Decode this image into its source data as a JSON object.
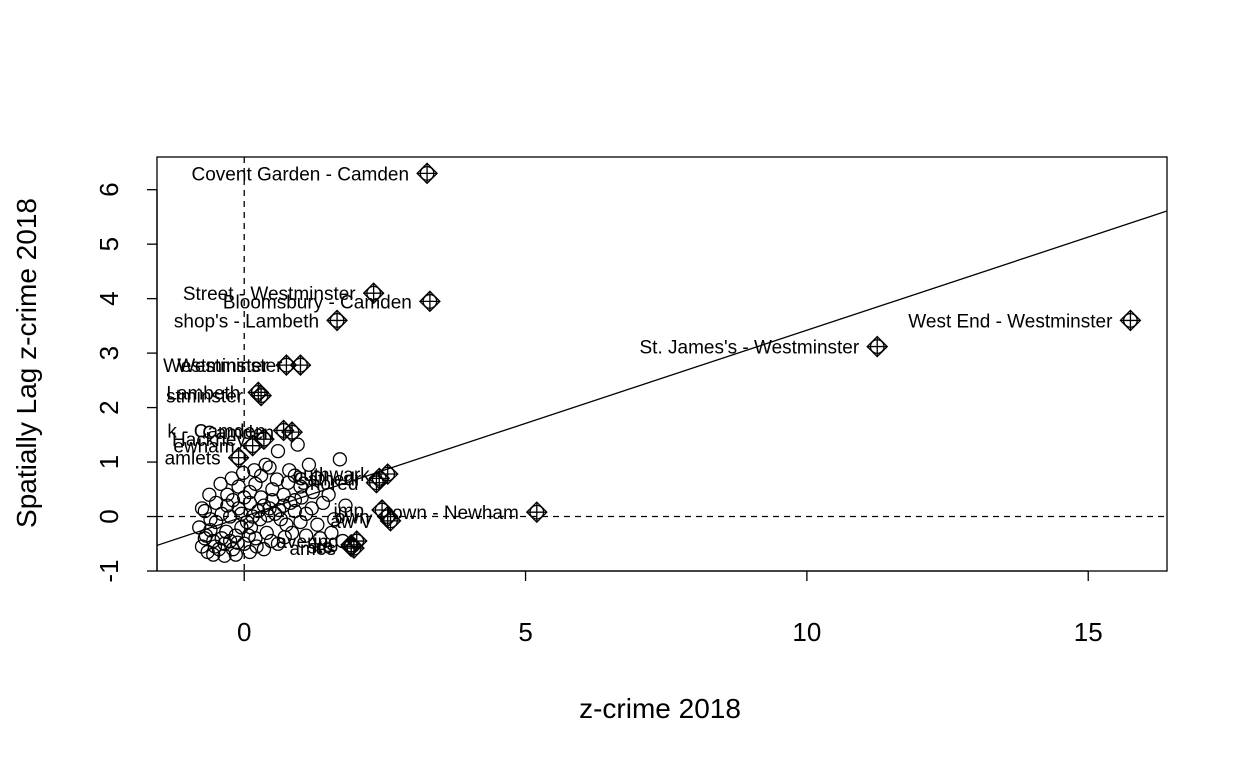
{
  "chart_data": {
    "type": "scatter",
    "title": "",
    "xlabel": "z-crime 2018",
    "ylabel": "Spatially Lag z-crime 2018",
    "xlim": [
      -1.55,
      16.4
    ],
    "ylim": [
      -1.0,
      6.6
    ],
    "xticks": [
      0,
      5,
      10,
      15
    ],
    "yticks": [
      -1,
      0,
      1,
      2,
      3,
      4,
      5,
      6
    ],
    "reference_lines": {
      "x": 0,
      "y": 0,
      "style": "dashed"
    },
    "regression_line": {
      "intercept": 0.0,
      "slope": 0.342
    },
    "influential_points": [
      {
        "x": 3.25,
        "y": 6.3,
        "label": "Covent Garden - Camden"
      },
      {
        "x": 15.75,
        "y": 3.6,
        "label": "West End - Westminster"
      },
      {
        "x": 11.25,
        "y": 3.12,
        "label": "St. James's - Westminster"
      },
      {
        "x": 3.3,
        "y": 3.95,
        "label": "Bloomsbury - Camden"
      },
      {
        "x": 2.3,
        "y": 4.1,
        "label": "Street - Westminster"
      },
      {
        "x": 1.65,
        "y": 3.6,
        "label": "shop's - Lambeth"
      },
      {
        "x": 5.2,
        "y": 0.08,
        "label": "own - Newham"
      },
      {
        "x": 0.75,
        "y": 2.78,
        "label": "Westminster"
      },
      {
        "x": 1.0,
        "y": 2.78,
        "label": "Westminster"
      },
      {
        "x": 0.25,
        "y": 2.28,
        "label": "Lambeth"
      },
      {
        "x": 0.3,
        "y": 2.22,
        "label": "stminster"
      },
      {
        "x": 0.7,
        "y": 1.58,
        "label": "k - Camden"
      },
      {
        "x": 0.85,
        "y": 1.55,
        "label": "Camden"
      },
      {
        "x": 0.35,
        "y": 1.42,
        "label": "Hackney"
      },
      {
        "x": 0.15,
        "y": 1.3,
        "label": "ewham"
      },
      {
        "x": -0.1,
        "y": 1.08,
        "label": "amlets"
      },
      {
        "x": 2.55,
        "y": 0.78,
        "label": "outhwark"
      },
      {
        "x": 2.4,
        "y": 0.7,
        "label": "Cathedr"
      },
      {
        "x": 2.35,
        "y": 0.62,
        "label": "Shored"
      },
      {
        "x": 2.45,
        "y": 0.12,
        "label": "imp"
      },
      {
        "x": 2.55,
        "y": 0.0,
        "label": "own"
      },
      {
        "x": 2.6,
        "y": -0.08,
        "label": "aw V"
      },
      {
        "x": 2.0,
        "y": -0.45,
        "label": "avering"
      },
      {
        "x": 1.95,
        "y": -0.58,
        "label": "ames"
      },
      {
        "x": 1.9,
        "y": -0.52,
        "label": "ke"
      },
      {
        "x": 1.9,
        "y": -0.55,
        "label": "sto"
      }
    ],
    "points": [
      [
        1.7,
        1.05
      ],
      [
        1.3,
        0.7
      ],
      [
        1.0,
        0.55
      ],
      [
        0.6,
        1.2
      ],
      [
        0.8,
        0.85
      ],
      [
        0.95,
        1.32
      ],
      [
        1.5,
        0.4
      ],
      [
        1.8,
        0.2
      ],
      [
        1.6,
        -0.05
      ],
      [
        1.4,
        0.25
      ],
      [
        1.2,
        0.15
      ],
      [
        1.0,
        -0.1
      ],
      [
        0.9,
        0.3
      ],
      [
        0.7,
        0.4
      ],
      [
        0.5,
        0.5
      ],
      [
        0.45,
        0.9
      ],
      [
        0.3,
        0.75
      ],
      [
        0.2,
        0.6
      ],
      [
        0.1,
        0.45
      ],
      [
        0.0,
        0.35
      ],
      [
        -0.1,
        0.55
      ],
      [
        -0.2,
        0.3
      ],
      [
        -0.3,
        0.2
      ],
      [
        -0.4,
        0.05
      ],
      [
        -0.5,
        -0.1
      ],
      [
        -0.6,
        -0.25
      ],
      [
        -0.7,
        -0.4
      ],
      [
        -0.75,
        -0.55
      ],
      [
        -0.65,
        -0.65
      ],
      [
        -0.55,
        -0.7
      ],
      [
        -0.45,
        -0.6
      ],
      [
        -0.35,
        -0.5
      ],
      [
        -0.25,
        -0.45
      ],
      [
        -0.15,
        -0.35
      ],
      [
        -0.05,
        -0.2
      ],
      [
        0.05,
        -0.1
      ],
      [
        0.15,
        0.0
      ],
      [
        0.25,
        0.1
      ],
      [
        0.35,
        0.2
      ],
      [
        0.45,
        0.15
      ],
      [
        0.55,
        0.05
      ],
      [
        0.65,
        -0.05
      ],
      [
        0.75,
        -0.15
      ],
      [
        0.85,
        -0.3
      ],
      [
        1.1,
        -0.35
      ],
      [
        1.35,
        -0.4
      ],
      [
        1.55,
        -0.3
      ],
      [
        1.75,
        -0.45
      ],
      [
        0.4,
        -0.3
      ],
      [
        0.2,
        -0.4
      ],
      [
        0.0,
        -0.5
      ],
      [
        -0.2,
        -0.6
      ],
      [
        -0.4,
        -0.4
      ],
      [
        -0.6,
        -0.05
      ],
      [
        -0.7,
        0.1
      ],
      [
        -0.5,
        0.25
      ],
      [
        -0.3,
        0.4
      ],
      [
        -0.1,
        0.15
      ],
      [
        0.1,
        0.25
      ],
      [
        0.3,
        0.35
      ],
      [
        0.5,
        0.3
      ],
      [
        0.7,
        0.2
      ],
      [
        0.9,
        0.1
      ],
      [
        1.1,
        0.05
      ],
      [
        1.3,
        -0.15
      ],
      [
        0.6,
        -0.5
      ],
      [
        0.35,
        -0.6
      ],
      [
        0.1,
        -0.65
      ],
      [
        -0.15,
        -0.7
      ],
      [
        -0.35,
        -0.72
      ],
      [
        -0.55,
        -0.45
      ],
      [
        -0.25,
        0.0
      ],
      [
        -0.05,
        0.05
      ],
      [
        0.12,
        -0.2
      ],
      [
        0.28,
        -0.05
      ],
      [
        0.42,
        0.02
      ],
      [
        0.62,
        0.12
      ],
      [
        0.82,
        0.25
      ],
      [
        1.02,
        0.35
      ],
      [
        1.22,
        0.45
      ],
      [
        -0.62,
        0.4
      ],
      [
        -0.42,
        0.6
      ],
      [
        -0.22,
        0.7
      ],
      [
        -0.02,
        0.8
      ],
      [
        0.18,
        0.85
      ],
      [
        0.38,
        0.95
      ],
      [
        0.58,
        0.68
      ],
      [
        0.78,
        0.62
      ],
      [
        1.15,
        0.95
      ],
      [
        0.9,
        0.75
      ],
      [
        -0.8,
        -0.2
      ],
      [
        -0.75,
        0.15
      ],
      [
        -0.68,
        -0.35
      ],
      [
        -0.52,
        -0.55
      ],
      [
        -0.32,
        -0.28
      ],
      [
        -0.12,
        -0.48
      ],
      [
        0.08,
        -0.35
      ],
      [
        0.22,
        -0.55
      ],
      [
        0.48,
        -0.45
      ],
      [
        0.72,
        -0.38
      ]
    ]
  }
}
